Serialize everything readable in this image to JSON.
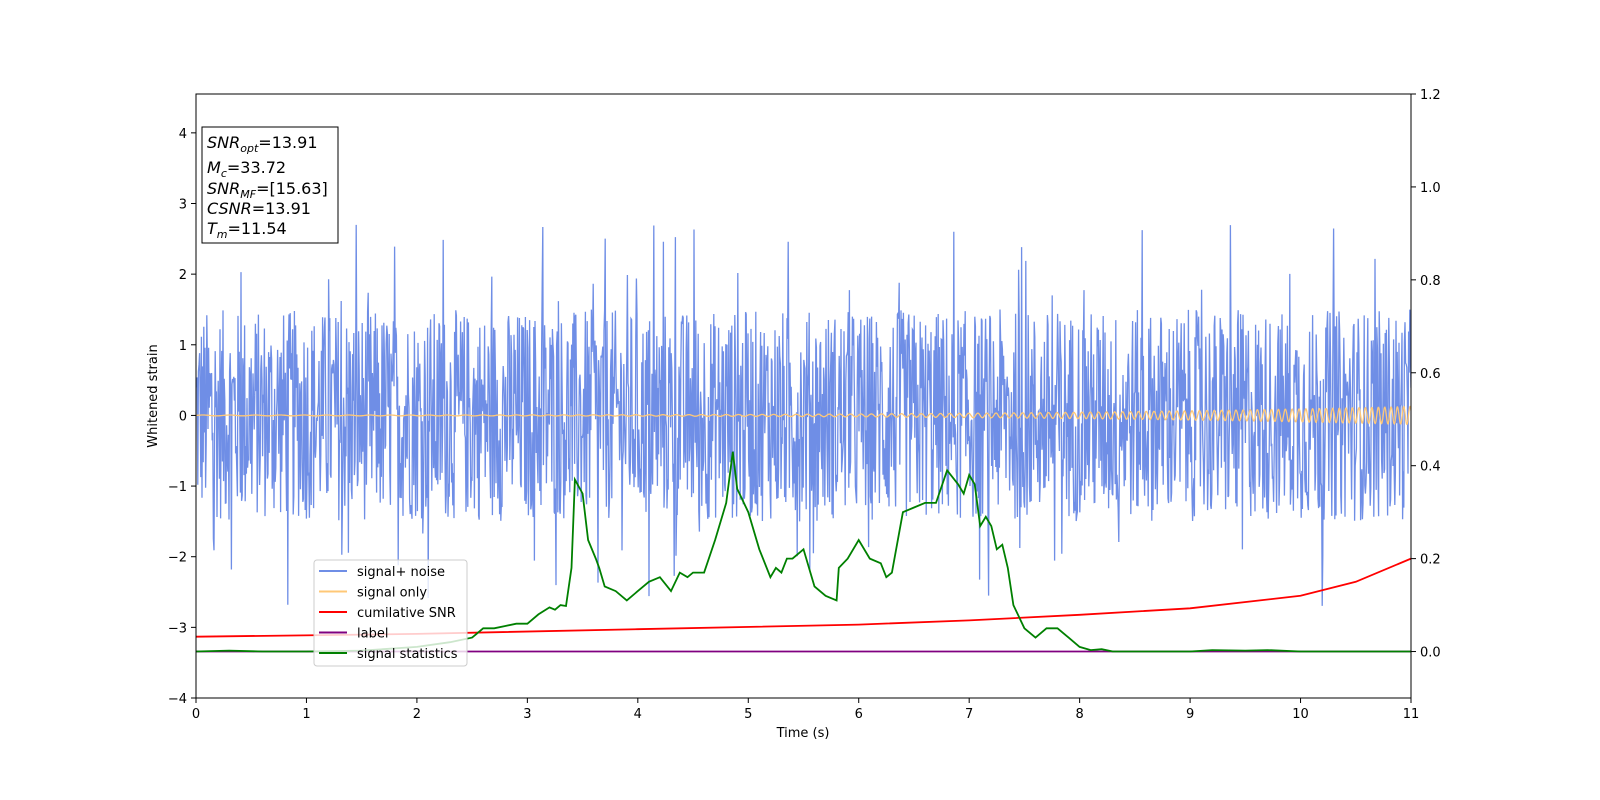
{
  "chart_data": {
    "type": "line",
    "xlabel": "Time (s)",
    "ylabel": "Whitened strain",
    "xlim": [
      0,
      11
    ],
    "ylim_left": [
      -4,
      4.55
    ],
    "ylim_right": [
      -0.1,
      1.2
    ],
    "x_ticks": [
      "0",
      "1",
      "2",
      "3",
      "4",
      "5",
      "6",
      "7",
      "8",
      "9",
      "10",
      "11"
    ],
    "y_left_ticks": [
      "−4",
      "−3",
      "−2",
      "−1",
      "0",
      "1",
      "2",
      "3",
      "4"
    ],
    "y_right_ticks": [
      "0.0",
      "0.2",
      "0.4",
      "0.6",
      "0.8",
      "1.0",
      "1.2"
    ],
    "grid": false,
    "legend_position": "lower-left",
    "stats_box": [
      {
        "base": "SNR",
        "sub": "opt",
        "rest": "=13.91"
      },
      {
        "base": "M",
        "sub": "c",
        "rest": "=33.72"
      },
      {
        "base": "SNR",
        "sub": "MF",
        "rest": "=[15.63]"
      },
      {
        "base": "CSNR",
        "sub": "",
        "rest": "=13.91"
      },
      {
        "base": "T",
        "sub": "m",
        "rest": "=11.54"
      }
    ],
    "series": [
      {
        "name": "signal+ noise",
        "axis": "left",
        "color": "#6f8ee6",
        "kind": "noise",
        "amplitude_typical": 1.5,
        "amplitude_peak": 2.7
      },
      {
        "name": "signal only",
        "axis": "left",
        "color": "#ffc877",
        "kind": "chirp",
        "amplitude_end": 0.12
      },
      {
        "name": "cumilative SNR",
        "axis": "right",
        "color": "#ff0000",
        "x": [
          0,
          2,
          4,
          6,
          7,
          8,
          9,
          10,
          10.5,
          11
        ],
        "values": [
          0.032,
          0.038,
          0.048,
          0.058,
          0.067,
          0.079,
          0.093,
          0.12,
          0.15,
          0.2
        ]
      },
      {
        "name": "label",
        "axis": "right",
        "color": "#800080",
        "x": [
          0,
          11
        ],
        "values": [
          0.0,
          0.0
        ]
      },
      {
        "name": "signal statistics",
        "axis": "right",
        "color": "#008000",
        "x": [
          0,
          0.3,
          0.6,
          1.0,
          1.5,
          2.0,
          2.3,
          2.5,
          2.6,
          2.7,
          2.8,
          2.9,
          3.0,
          3.1,
          3.2,
          3.25,
          3.3,
          3.35,
          3.4,
          3.43,
          3.5,
          3.55,
          3.62,
          3.65,
          3.7,
          3.8,
          3.9,
          4.0,
          4.1,
          4.2,
          4.3,
          4.38,
          4.45,
          4.5,
          4.6,
          4.7,
          4.8,
          4.86,
          4.9,
          5.0,
          5.1,
          5.2,
          5.25,
          5.3,
          5.35,
          5.4,
          5.5,
          5.6,
          5.7,
          5.8,
          5.82,
          5.9,
          6.0,
          6.1,
          6.2,
          6.25,
          6.3,
          6.4,
          6.5,
          6.6,
          6.7,
          6.8,
          6.9,
          6.95,
          7.0,
          7.05,
          7.1,
          7.15,
          7.2,
          7.25,
          7.3,
          7.35,
          7.4,
          7.5,
          7.6,
          7.7,
          7.8,
          7.9,
          8.0,
          8.1,
          8.2,
          8.3,
          8.5,
          9.0,
          9.2,
          9.5,
          9.7,
          10.0,
          10.5,
          11.0
        ],
        "values": [
          0.0,
          0.002,
          0.0,
          0.0,
          0.002,
          0.01,
          0.02,
          0.03,
          0.05,
          0.05,
          0.055,
          0.06,
          0.06,
          0.08,
          0.095,
          0.09,
          0.1,
          0.098,
          0.18,
          0.37,
          0.34,
          0.24,
          0.2,
          0.18,
          0.14,
          0.13,
          0.11,
          0.13,
          0.15,
          0.16,
          0.13,
          0.17,
          0.16,
          0.17,
          0.17,
          0.24,
          0.32,
          0.43,
          0.35,
          0.3,
          0.22,
          0.16,
          0.18,
          0.17,
          0.2,
          0.2,
          0.22,
          0.14,
          0.12,
          0.11,
          0.18,
          0.2,
          0.24,
          0.2,
          0.19,
          0.16,
          0.17,
          0.3,
          0.31,
          0.32,
          0.32,
          0.39,
          0.36,
          0.34,
          0.38,
          0.36,
          0.27,
          0.29,
          0.27,
          0.22,
          0.23,
          0.18,
          0.1,
          0.05,
          0.03,
          0.05,
          0.05,
          0.03,
          0.01,
          0.003,
          0.005,
          0.0,
          0.0,
          0.0,
          0.003,
          0.002,
          0.003,
          0.0,
          0.0,
          0.0
        ]
      }
    ]
  }
}
